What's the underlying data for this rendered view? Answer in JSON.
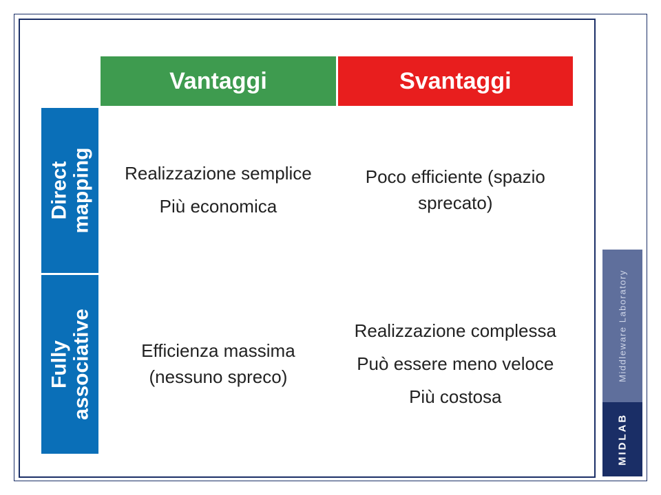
{
  "colors": {
    "border": "#1a2e66",
    "advantages_header": "#3e9b4f",
    "disadvantages_header": "#e81e1e",
    "row_label": "#0a6fb8",
    "brand_top_bg": "#5f6f9c",
    "brand_top_text": "#cfd6e8",
    "brand_bot_bg": "#1a2e66",
    "brand_bot_text": "#ffffff",
    "body_text": "#222222"
  },
  "table": {
    "headers": {
      "advantages": "Vantaggi",
      "disadvantages": "Svantaggi"
    },
    "rows": [
      {
        "label_line1": "Direct",
        "label_line2": "mapping",
        "advantages": [
          "Realizzazione semplice",
          "Più economica"
        ],
        "disadvantages": [
          "Poco efficiente (spazio sprecato)"
        ]
      },
      {
        "label_line1": "Fully",
        "label_line2": "associative",
        "advantages": [
          "Efficienza massima (nessuno spreco)"
        ],
        "disadvantages": [
          "Realizzazione complessa",
          "Può essere meno veloce",
          "Più costosa"
        ]
      }
    ]
  },
  "branding": {
    "subtitle": "Middleware Laboratory",
    "title": "MIDLAB"
  }
}
